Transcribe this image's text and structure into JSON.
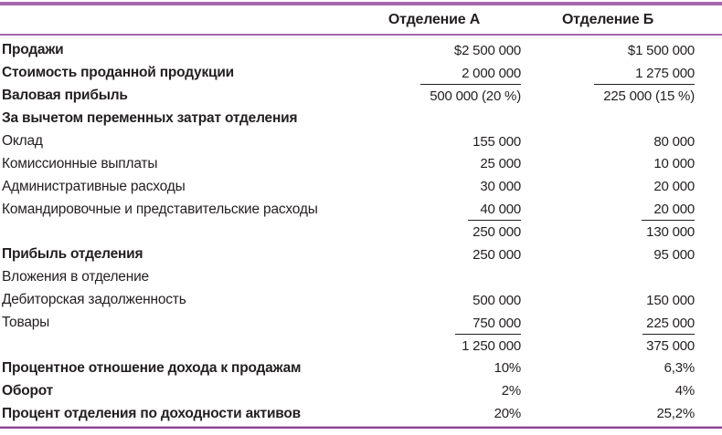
{
  "colors": {
    "accent": "#a466aa",
    "accent_dark": "#8a4495",
    "accent_light": "#d7b3da",
    "text": "#231f20"
  },
  "table": {
    "header": {
      "col_a": "Отделение А",
      "col_b": "Отделение Б"
    },
    "rows": [
      {
        "label": "Продажи",
        "bold": true,
        "a": "$2 500 000",
        "b": "$1 500 000"
      },
      {
        "label": "Стоимость проданной продукции",
        "bold": true,
        "a": "2 000 000",
        "b": "1 275 000",
        "rule_below": true
      },
      {
        "label": "Валовая прибыль",
        "bold": true,
        "a": "500 000 (20 %)",
        "b": "225 000 (15 %)"
      },
      {
        "label": "За вычетом переменных затрат отделения",
        "bold": true,
        "a": "",
        "b": ""
      },
      {
        "label": "Оклад",
        "bold": false,
        "a": "155 000",
        "b": "80 000"
      },
      {
        "label": "Комиссионные выплаты",
        "bold": false,
        "a": "25 000",
        "b": "10 000"
      },
      {
        "label": "Административные расходы",
        "bold": false,
        "a": "30 000",
        "b": "20 000"
      },
      {
        "label": "Командировочные и представительские расходы",
        "bold": false,
        "a": "40 000",
        "b": "20 000",
        "rule_below": true
      },
      {
        "label": "",
        "bold": false,
        "a": "250 000",
        "b": "130 000"
      },
      {
        "label": "Прибыль отделения",
        "bold": true,
        "a": "250 000",
        "b": "95 000"
      },
      {
        "label": "Вложения в отделение",
        "bold": false,
        "a": "",
        "b": ""
      },
      {
        "label": "Дебиторская задолженность",
        "bold": false,
        "a": "500 000",
        "b": "150 000"
      },
      {
        "label": "Товары",
        "bold": false,
        "a": "750 000",
        "b": "225 000",
        "rule_below": true
      },
      {
        "label": "",
        "bold": false,
        "a": "1 250 000",
        "b": "375 000"
      },
      {
        "label": "Процентное отношение дохода к продажам",
        "bold": true,
        "a": "10%",
        "b": "6,3%"
      },
      {
        "label": "Оборот",
        "bold": true,
        "a": "2%",
        "b": "4%"
      },
      {
        "label": "Процент отделения по доходности активов",
        "bold": true,
        "a": "20%",
        "b": "25,2%"
      }
    ]
  }
}
